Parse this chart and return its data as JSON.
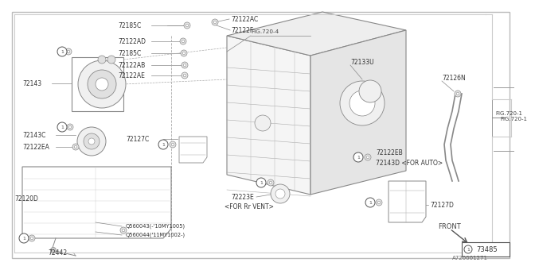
{
  "bg_color": "#ffffff",
  "border_color": "#aaaaaa",
  "line_color": "#888888",
  "dark_line": "#555555",
  "title": "A720001271",
  "fig_ref_right": "FIG.720-1",
  "fig_ref_top": "FIG.720-4",
  "part_number_box": "73485",
  "font_size": 5.5,
  "diagram_font": "DejaVu Sans"
}
